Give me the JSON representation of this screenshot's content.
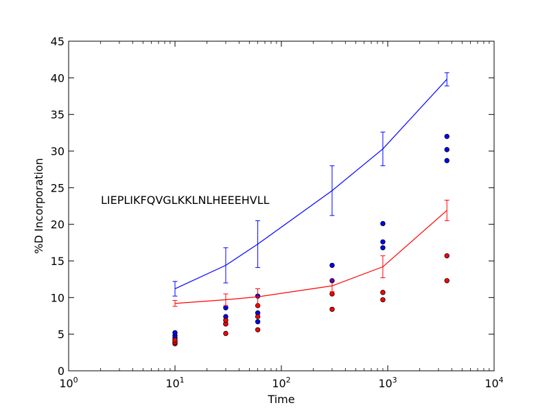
{
  "chart_data": {
    "type": "line",
    "title": "",
    "xlabel": "Time",
    "ylabel": "%D Incorporation",
    "xscale": "log",
    "xlim": [
      1,
      10000
    ],
    "ylim": [
      0,
      45
    ],
    "x_ticks": [
      {
        "value": 1,
        "base": "10",
        "exp": "0"
      },
      {
        "value": 10,
        "base": "10",
        "exp": "1"
      },
      {
        "value": 100,
        "base": "10",
        "exp": "2"
      },
      {
        "value": 1000,
        "base": "10",
        "exp": "3"
      },
      {
        "value": 10000,
        "base": "10",
        "exp": "4"
      }
    ],
    "y_ticks": [
      "0",
      "5",
      "10",
      "15",
      "20",
      "25",
      "30",
      "35",
      "40",
      "45"
    ],
    "grid": false,
    "annotation": "LIEPLIKFQVGLKKLNLHEEEHVLL",
    "series": [
      {
        "color": "#0000ff",
        "x": [
          10,
          30,
          60,
          300,
          900,
          3600
        ],
        "y": [
          11.2,
          14.4,
          17.3,
          24.6,
          30.3,
          39.8
        ],
        "err": [
          1.0,
          2.4,
          3.2,
          3.4,
          2.3,
          0.9
        ],
        "points": [
          [
            10,
            3.7
          ],
          [
            10,
            4.2
          ],
          [
            10,
            4.5
          ],
          [
            10,
            4.8
          ],
          [
            10,
            5.2
          ],
          [
            30,
            6.4
          ],
          [
            30,
            7.4
          ],
          [
            30,
            8.6
          ],
          [
            60,
            6.7
          ],
          [
            60,
            7.9
          ],
          [
            60,
            10.2
          ],
          [
            300,
            12.3
          ],
          [
            300,
            14.4
          ],
          [
            900,
            16.8
          ],
          [
            900,
            17.6
          ],
          [
            900,
            20.1
          ],
          [
            3600,
            28.7
          ],
          [
            3600,
            30.2
          ],
          [
            3600,
            32.0
          ]
        ]
      },
      {
        "color": "#ff0000",
        "x": [
          10,
          30,
          60,
          300,
          900,
          3600
        ],
        "y": [
          9.2,
          9.7,
          10.1,
          11.6,
          14.2,
          21.9
        ],
        "err": [
          0.4,
          0.8,
          1.1,
          0.8,
          1.5,
          1.4
        ],
        "points": [
          [
            10,
            3.7
          ],
          [
            10,
            3.9
          ],
          [
            10,
            4.2
          ],
          [
            30,
            5.1
          ],
          [
            30,
            6.4
          ],
          [
            30,
            6.9
          ],
          [
            60,
            5.6
          ],
          [
            60,
            7.4
          ],
          [
            60,
            8.9
          ],
          [
            300,
            8.4
          ],
          [
            300,
            10.5
          ],
          [
            900,
            9.7
          ],
          [
            900,
            10.7
          ],
          [
            3600,
            12.3
          ],
          [
            3600,
            15.7
          ]
        ]
      }
    ]
  }
}
